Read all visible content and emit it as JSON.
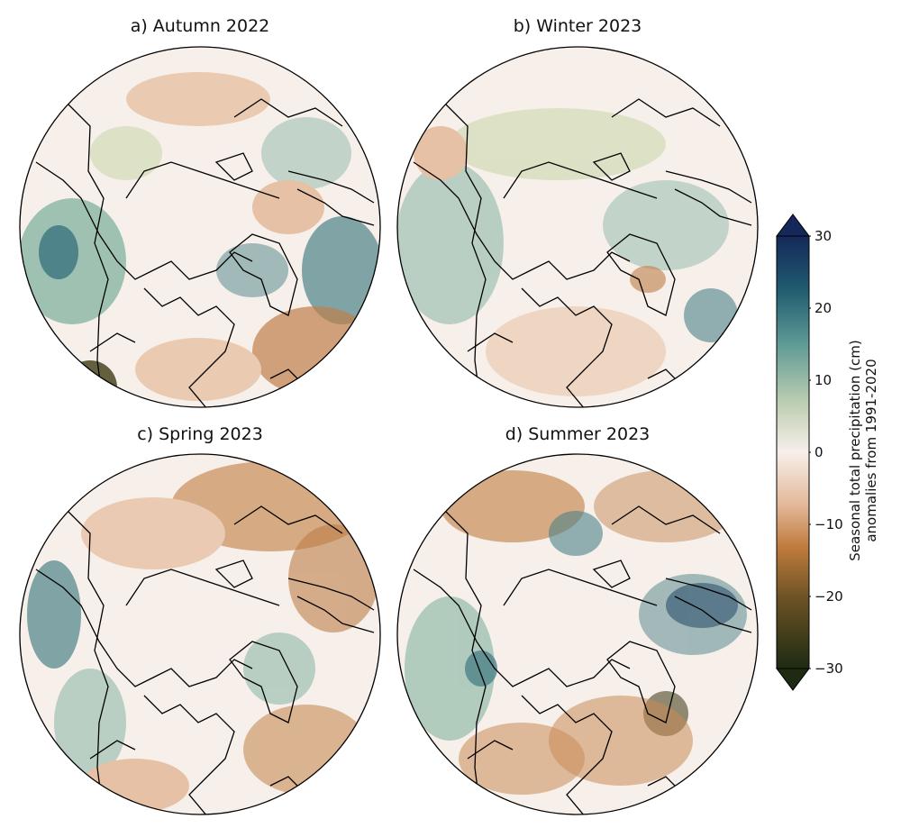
{
  "panels": [
    {
      "id": "a",
      "title": "a) Autumn 2022"
    },
    {
      "id": "b",
      "title": "b) Winter 2023"
    },
    {
      "id": "c",
      "title": "c) Spring 2023"
    },
    {
      "id": "d",
      "title": "d) Summer 2023"
    }
  ],
  "colorbar": {
    "label_line1": "Seasonal total precipitation (cm)",
    "label_line2": "anomalies from 1991-2020",
    "ticks": [
      "30",
      "20",
      "10",
      "0",
      "−10",
      "−20",
      "−30"
    ],
    "min": -30,
    "max": 30,
    "extend": "both",
    "colors": {
      "neg_extreme": "#1e2a12",
      "neg_dark": "#4a4520",
      "neg_mid": "#b46a2c",
      "neg_light": "#e8c4a8",
      "neutral": "#f7efea",
      "pos_light": "#d8dfc0",
      "pos_mid": "#8fb9a8",
      "pos_dark": "#2f6f78",
      "pos_extreme": "#15285a"
    }
  }
}
